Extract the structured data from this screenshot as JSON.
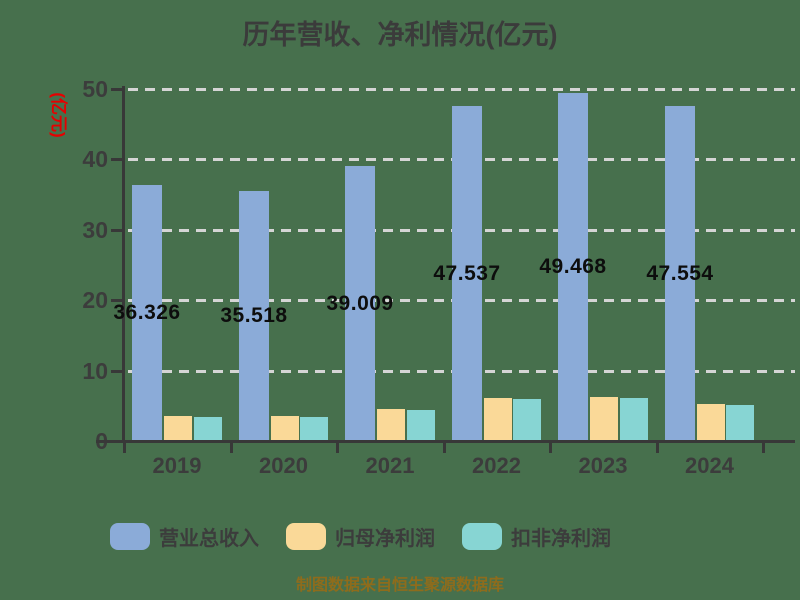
{
  "chart_data": {
    "type": "bar",
    "title": "历年营收、净利情况(亿元)",
    "y_axis_name": "(亿元)",
    "caption": "制图数据来自恒生聚源数据库",
    "categories": [
      "2019",
      "2020",
      "2021",
      "2022",
      "2023",
      "2024"
    ],
    "series": [
      {
        "key": "total-revenue",
        "name": "营业总收入",
        "color": "#8BABD8",
        "values": [
          36.326,
          35.518,
          39.009,
          47.537,
          49.468,
          47.554
        ],
        "labels": [
          "36.326",
          "35.518",
          "39.009",
          "47.537",
          "49.468",
          "47.554"
        ]
      },
      {
        "key": "net-profit",
        "name": "归母净利润",
        "color": "#FAD998",
        "values": [
          3.5,
          3.6,
          4.5,
          6.1,
          6.3,
          5.3
        ]
      },
      {
        "key": "non-gaap-net-profit",
        "name": "扣非净利润",
        "color": "#87D5D3",
        "values": [
          3.4,
          3.4,
          4.4,
          6.0,
          6.1,
          5.1
        ]
      }
    ],
    "ylim": [
      0,
      50
    ],
    "y_ticks": [
      0,
      10,
      20,
      30,
      40,
      50
    ],
    "grid": "horizontal-dashed",
    "legend_position": "bottom"
  },
  "colors": {
    "background": "#47704D",
    "title": "#3B3B3B",
    "axis": "#383838",
    "tick_label": "#3C3C3C",
    "gridline": "#D5D5D5",
    "value_label": "#0D0D0D",
    "y_axis_name": "#E60000",
    "caption": "#8E6C1C"
  }
}
